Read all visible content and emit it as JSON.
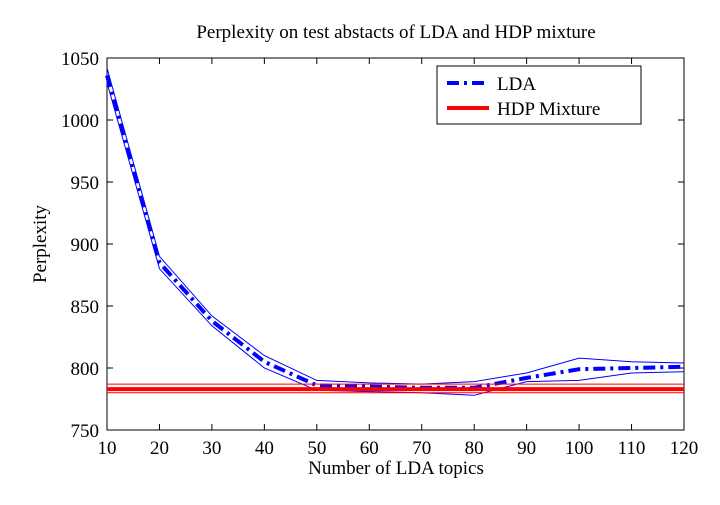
{
  "chart_data": {
    "type": "line",
    "title": "Perplexity on test abstacts of LDA and HDP mixture",
    "xlabel": "Number of LDA topics",
    "ylabel": "Perplexity",
    "xlim": [
      10,
      120
    ],
    "ylim": [
      750,
      1050
    ],
    "xticks": [
      10,
      20,
      30,
      40,
      50,
      60,
      70,
      80,
      90,
      100,
      110,
      120
    ],
    "yticks": [
      750,
      800,
      850,
      900,
      950,
      1000,
      1050
    ],
    "grid": false,
    "legend": {
      "placement": "top-right"
    },
    "series": [
      {
        "name": "LDA",
        "style": "dash-dot",
        "color": "#0000ff",
        "x": [
          10,
          20,
          30,
          40,
          50,
          60,
          70,
          80,
          90,
          100,
          110,
          120
        ],
        "y": [
          1036,
          885,
          838,
          805,
          786,
          785,
          784,
          784,
          792,
          799,
          800,
          801
        ],
        "upper": [
          1042,
          890,
          842,
          810,
          790,
          788,
          787,
          789,
          796,
          808,
          805,
          804
        ],
        "lower": [
          1030,
          880,
          834,
          800,
          782,
          781,
          780,
          778,
          789,
          790,
          796,
          797
        ]
      },
      {
        "name": "HDP Mixture",
        "style": "solid",
        "color": "#ff0000",
        "x": [
          10,
          120
        ],
        "y": [
          783,
          783
        ],
        "upper": [
          787,
          787
        ],
        "lower": [
          780,
          780
        ]
      }
    ]
  }
}
